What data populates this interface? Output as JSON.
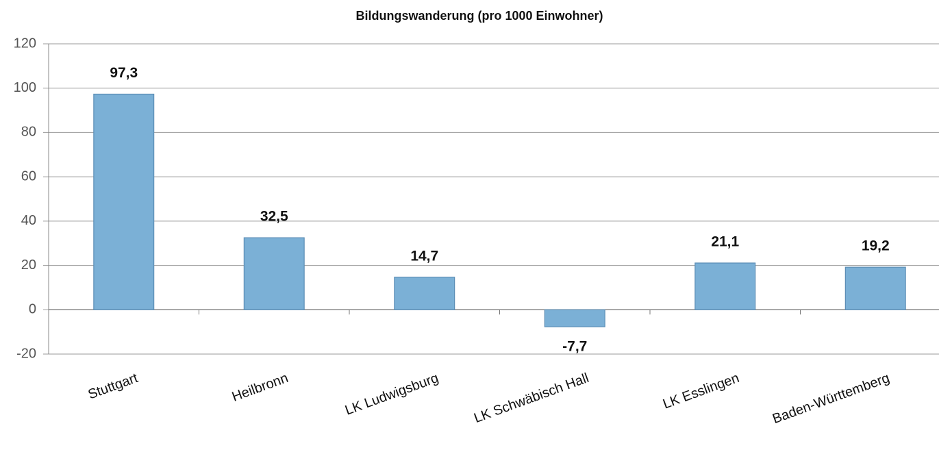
{
  "chart_data": {
    "type": "bar",
    "title": "Bildungswanderung (pro 1000 Einwohner)",
    "categories": [
      "Stuttgart",
      "Heilbronn",
      "LK Ludwigsburg",
      "LK Schwäbisch Hall",
      "LK Esslingen",
      "Baden-Württemberg"
    ],
    "values": [
      97.3,
      32.5,
      14.7,
      -7.7,
      21.1,
      19.2
    ],
    "value_labels": [
      "97,3",
      "32,5",
      "14,7",
      "-7,7",
      "21,1",
      "19,2"
    ],
    "color": "#7bb0d6",
    "ylim": [
      -20,
      120
    ],
    "yticks": [
      -20,
      0,
      20,
      40,
      60,
      80,
      100,
      120
    ],
    "grid": true
  }
}
